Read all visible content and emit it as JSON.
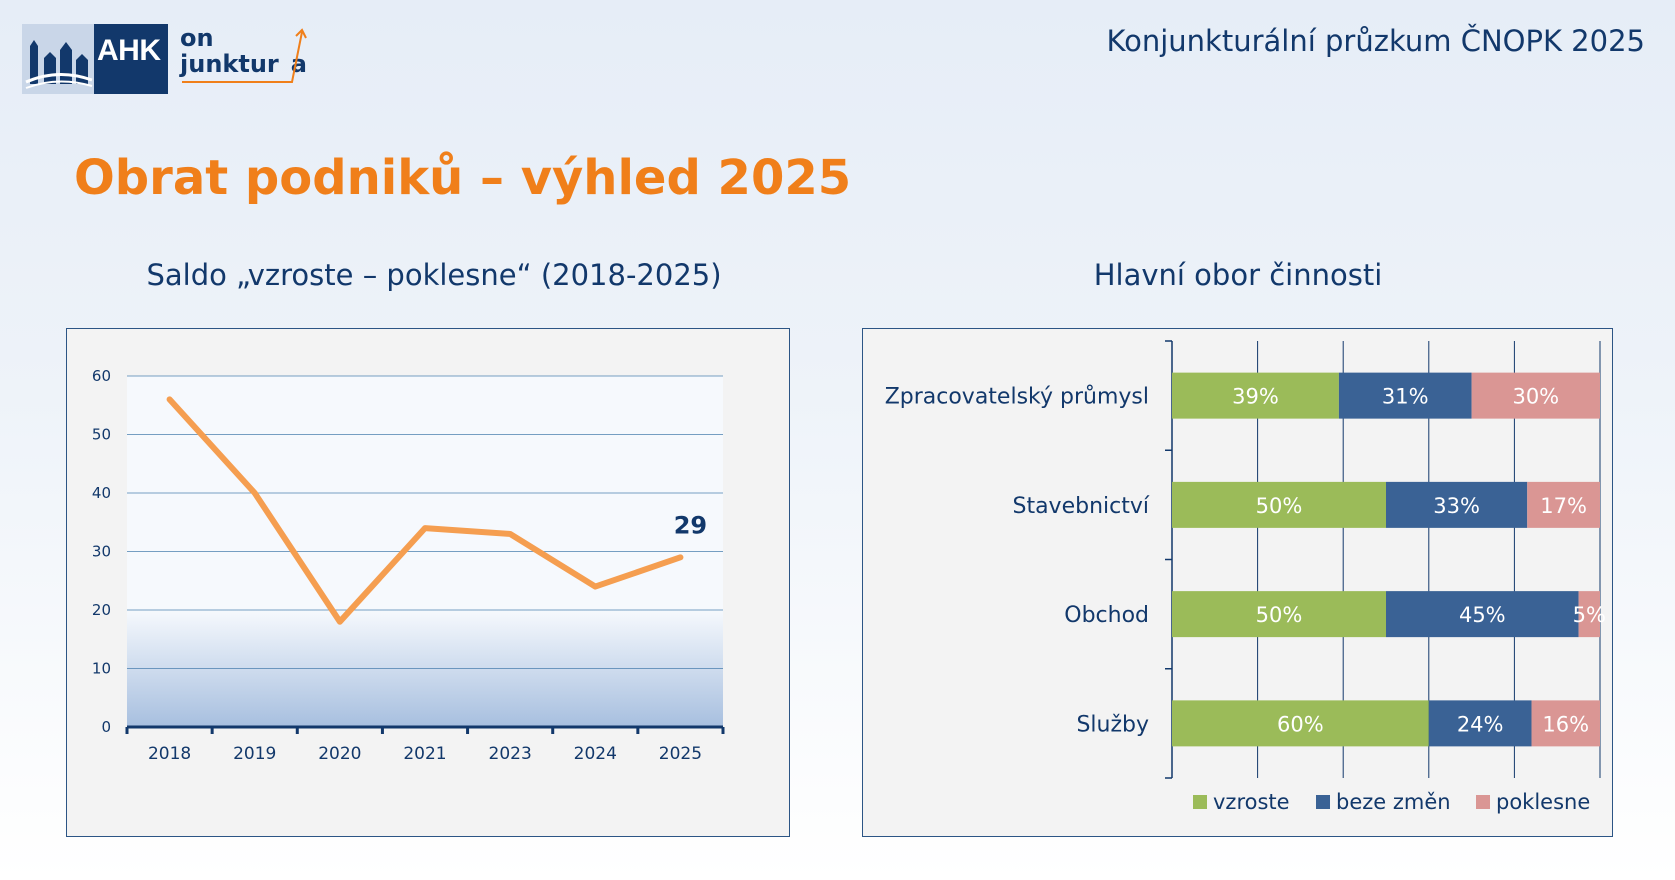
{
  "header": {
    "title": "Konjunkturální průzkum ČNOPK 2025",
    "logo": {
      "ahk": "AHK",
      "on": "on",
      "junktura": "junktur",
      "a": "a"
    }
  },
  "page_title": "Obrat podniků – výhled 2025",
  "colors": {
    "navy": "#12386b",
    "orange": "#f07f1a",
    "line": "#f59e50",
    "vzroste": "#9bbb59",
    "beze_zmen": "#3a6295",
    "poklesne": "#da9694"
  },
  "chart_data": [
    {
      "type": "line",
      "title": "Saldo „vzroste – poklesne“ (2018-2025)",
      "categories": [
        "2018",
        "2019",
        "2020",
        "2021",
        "2023",
        "2024",
        "2025"
      ],
      "series": [
        {
          "values": [
            56,
            40,
            18,
            34,
            33,
            24,
            29
          ]
        }
      ],
      "ylim": [
        0,
        60
      ],
      "yticks": [
        "0",
        "10",
        "20",
        "30",
        "40",
        "50",
        "60"
      ],
      "data_labels": [
        {
          "index": 6,
          "text": "29"
        }
      ],
      "grid": true
    },
    {
      "type": "bar",
      "orientation": "horizontal",
      "stacked": true,
      "title": "Hlavní obor činnosti",
      "categories": [
        "Zpracovatelský průmysl",
        "Stavebnictví",
        "Obchod",
        "Služby"
      ],
      "series": [
        {
          "name": "vzroste",
          "values": [
            39,
            50,
            50,
            60
          ],
          "labels": [
            "39%",
            "50%",
            "50%",
            "60%"
          ],
          "color": "#9bbb59"
        },
        {
          "name": "beze změn",
          "values": [
            31,
            33,
            45,
            24
          ],
          "labels": [
            "31%",
            "33%",
            "45%",
            "24%"
          ],
          "color": "#3a6295"
        },
        {
          "name": "poklesne",
          "values": [
            30,
            17,
            5,
            16
          ],
          "labels": [
            "30%",
            "17%",
            "5%",
            "16%"
          ],
          "color": "#da9694"
        }
      ],
      "xlim": [
        0,
        100
      ],
      "legend": "bottom-right",
      "grid": true
    }
  ]
}
